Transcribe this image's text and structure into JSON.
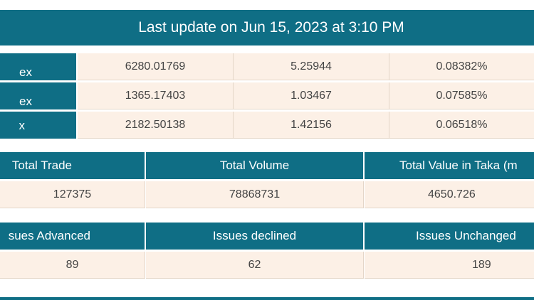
{
  "header": {
    "last_update": "Last update on Jun 15, 2023 at 3:10 PM"
  },
  "indices": [
    {
      "name": "ex",
      "value": "6280.01769",
      "change": "5.25944",
      "percent": "0.08382%"
    },
    {
      "name": "ex",
      "value": "1365.17403",
      "change": "1.03467",
      "percent": "0.07585%"
    },
    {
      "name": "x",
      "value": "2182.50138",
      "change": "1.42156",
      "percent": "0.06518%"
    }
  ],
  "trade_summary": {
    "headers": [
      "Total Trade",
      "Total Volume",
      "Total Value in Taka (m"
    ],
    "values": [
      "127375",
      "78868731",
      "4650.726"
    ]
  },
  "issues_summary": {
    "headers": [
      "sues Advanced",
      "Issues declined",
      "Issues Unchanged"
    ],
    "values": [
      "89",
      "62",
      "189"
    ]
  },
  "colors": {
    "header_bg": "#0f6e85",
    "cell_bg": "#fcf0e6",
    "text": "#444444"
  }
}
